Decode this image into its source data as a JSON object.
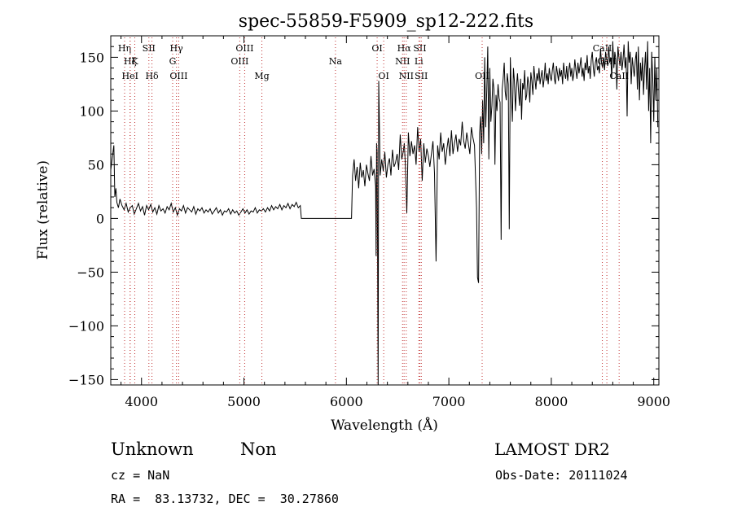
{
  "chart_data": {
    "type": "line",
    "title": "spec-55859-F5909_sp12-222.fits",
    "xlabel": "Wavelength (Å)",
    "ylabel": "Flux (relative)",
    "xlim": [
      3700,
      9050
    ],
    "ylim": [
      -155,
      170
    ],
    "xticks_major": [
      4000,
      5000,
      6000,
      7000,
      8000,
      9000
    ],
    "xtick_labels": [
      "4000",
      "5000",
      "6000",
      "7000",
      "8000",
      "9000"
    ],
    "yticks_major": [
      -150,
      -100,
      -50,
      0,
      50,
      100,
      150
    ],
    "ytick_labels": [
      "−150",
      "−100",
      "−50",
      "0",
      "50",
      "100",
      "150"
    ],
    "grid": false,
    "series": [
      {
        "color": "#000000",
        "x": [
          3700,
          3730,
          3740,
          3750,
          3760,
          3775,
          3790,
          3810,
          3830,
          3850,
          3870,
          3890,
          3910,
          3930,
          3950,
          3970,
          3990,
          4010,
          4030,
          4050,
          4070,
          4090,
          4110,
          4130,
          4150,
          4170,
          4190,
          4210,
          4230,
          4250,
          4270,
          4290,
          4310,
          4330,
          4350,
          4370,
          4390,
          4410,
          4430,
          4450,
          4470,
          4490,
          4510,
          4530,
          4550,
          4570,
          4590,
          4610,
          4630,
          4650,
          4670,
          4690,
          4710,
          4730,
          4750,
          4770,
          4790,
          4810,
          4830,
          4850,
          4870,
          4890,
          4910,
          4930,
          4950,
          4970,
          4990,
          5010,
          5030,
          5050,
          5070,
          5090,
          5110,
          5130,
          5150,
          5170,
          5190,
          5210,
          5230,
          5250,
          5270,
          5290,
          5310,
          5330,
          5350,
          5370,
          5390,
          5410,
          5430,
          5450,
          5470,
          5490,
          5510,
          5530,
          5550,
          5560,
          5800,
          6050,
          6060,
          6075,
          6090,
          6105,
          6120,
          6135,
          6150,
          6165,
          6180,
          6195,
          6210,
          6225,
          6240,
          6255,
          6270,
          6285,
          6290,
          6295,
          6300,
          6310,
          6315,
          6330,
          6345,
          6360,
          6375,
          6390,
          6405,
          6420,
          6435,
          6450,
          6465,
          6480,
          6495,
          6510,
          6525,
          6540,
          6555,
          6565,
          6575,
          6590,
          6605,
          6620,
          6635,
          6650,
          6665,
          6680,
          6695,
          6710,
          6725,
          6740,
          6755,
          6770,
          6785,
          6800,
          6815,
          6830,
          6845,
          6860,
          6875,
          6890,
          6905,
          6920,
          6935,
          6950,
          6965,
          6980,
          6995,
          7010,
          7025,
          7040,
          7055,
          7070,
          7085,
          7100,
          7115,
          7130,
          7145,
          7160,
          7175,
          7190,
          7205,
          7220,
          7235,
          7250,
          7260,
          7270,
          7280,
          7290,
          7300,
          7310,
          7320,
          7330,
          7340,
          7350,
          7360,
          7370,
          7380,
          7390,
          7400,
          7410,
          7420,
          7430,
          7440,
          7450,
          7460,
          7470,
          7480,
          7490,
          7500,
          7510,
          7520,
          7530,
          7540,
          7550,
          7560,
          7570,
          7580,
          7590,
          7600,
          7610,
          7620,
          7630,
          7640,
          7650,
          7660,
          7670,
          7680,
          7690,
          7700,
          7710,
          7720,
          7730,
          7740,
          7750,
          7760,
          7770,
          7780,
          7790,
          7800,
          7810,
          7820,
          7830,
          7840,
          7850,
          7860,
          7870,
          7880,
          7890,
          7900,
          7910,
          7920,
          7930,
          7940,
          7950,
          7960,
          7970,
          7980,
          7990,
          8000,
          8010,
          8020,
          8030,
          8040,
          8050,
          8060,
          8070,
          8080,
          8090,
          8100,
          8110,
          8120,
          8130,
          8140,
          8150,
          8160,
          8170,
          8180,
          8190,
          8200,
          8210,
          8220,
          8230,
          8240,
          8250,
          8260,
          8270,
          8280,
          8290,
          8300,
          8310,
          8320,
          8330,
          8340,
          8350,
          8360,
          8370,
          8380,
          8390,
          8400,
          8410,
          8420,
          8430,
          8440,
          8450,
          8460,
          8470,
          8480,
          8490,
          8500,
          8510,
          8520,
          8530,
          8540,
          8550,
          8560,
          8570,
          8580,
          8590,
          8600,
          8610,
          8620,
          8630,
          8640,
          8650,
          8660,
          8670,
          8680,
          8690,
          8700,
          8710,
          8720,
          8730,
          8740,
          8750,
          8760,
          8770,
          8780,
          8790,
          8800,
          8810,
          8820,
          8830,
          8840,
          8850,
          8860,
          8870,
          8880,
          8890,
          8900,
          8910,
          8920,
          8930,
          8940,
          8950,
          8960,
          8970,
          8980,
          8990,
          9000,
          9010,
          9020,
          9030,
          9040
        ],
        "y": [
          45,
          68,
          20,
          28,
          15,
          10,
          18,
          12,
          8,
          14,
          6,
          10,
          12,
          4,
          9,
          14,
          7,
          11,
          3,
          12,
          8,
          13,
          6,
          10,
          4,
          12,
          7,
          9,
          5,
          11,
          8,
          14,
          6,
          10,
          3,
          9,
          7,
          12,
          5,
          10,
          8,
          6,
          11,
          4,
          9,
          7,
          10,
          5,
          8,
          6,
          9,
          4,
          7,
          10,
          5,
          8,
          3,
          7,
          6,
          9,
          4,
          8,
          5,
          7,
          3,
          6,
          9,
          5,
          8,
          4,
          7,
          6,
          10,
          5,
          8,
          7,
          9,
          6,
          10,
          7,
          12,
          8,
          11,
          9,
          13,
          8,
          12,
          10,
          14,
          9,
          13,
          11,
          15,
          10,
          12,
          0,
          0,
          0,
          40,
          55,
          35,
          48,
          28,
          52,
          38,
          45,
          30,
          50,
          42,
          35,
          58,
          40,
          46,
          30,
          -35,
          70,
          62,
          -155,
          128,
          40,
          55,
          44,
          62,
          38,
          50,
          56,
          40,
          64,
          48,
          52,
          60,
          45,
          78,
          55,
          62,
          70,
          50,
          5,
          80,
          58,
          72,
          60,
          68,
          50,
          85,
          62,
          74,
          35,
          70,
          52,
          65,
          58,
          48,
          60,
          72,
          42,
          -40,
          68,
          55,
          80,
          62,
          70,
          50,
          64,
          75,
          58,
          82,
          60,
          70,
          78,
          62,
          74,
          68,
          90,
          72,
          65,
          80,
          70,
          60,
          85,
          75,
          68,
          40,
          10,
          -55,
          -60,
          80,
          95,
          60,
          110,
          70,
          150,
          85,
          120,
          160,
          55,
          140,
          90,
          105,
          130,
          120,
          50,
          115,
          100,
          125,
          112,
          108,
          -20,
          120,
          130,
          145,
          118,
          110,
          135,
          125,
          -10,
          150,
          115,
          90,
          140,
          128,
          100,
          122,
          135,
          118,
          105,
          130,
          92,
          126,
          120,
          138,
          110,
          115,
          132,
          125,
          108,
          136,
          128,
          115,
          142,
          130,
          120,
          135,
          128,
          140,
          125,
          132,
          138,
          122,
          130,
          145,
          128,
          135,
          125,
          140,
          132,
          128,
          138,
          145,
          130,
          125,
          142,
          135,
          128,
          140,
          132,
          138,
          125,
          145,
          135,
          130,
          142,
          128,
          138,
          145,
          132,
          140,
          128,
          135,
          148,
          138,
          130,
          145,
          135,
          142,
          150,
          132,
          140,
          128,
          145,
          138,
          152,
          135,
          142,
          130,
          148,
          155,
          140,
          132,
          145,
          150,
          138,
          142,
          135,
          158,
          145,
          140,
          150,
          138,
          155,
          148,
          142,
          160,
          145,
          150,
          130,
          165,
          140,
          155,
          148,
          120,
          160,
          150,
          142,
          155,
          138,
          148,
          162,
          140,
          150,
          95,
          165,
          145,
          155,
          125,
          150,
          140,
          132,
          148,
          155,
          120,
          160,
          110,
          145,
          128,
          150,
          115,
          140,
          155,
          120,
          165,
          100,
          140,
          70,
          155,
          130,
          90,
          150,
          110,
          140,
          85
        ]
      }
    ],
    "line_markers": [
      {
        "wavelength": 3835,
        "label": "Hη",
        "row": 1
      },
      {
        "wavelength": 3889,
        "label": "Hζ",
        "row": 2
      },
      {
        "wavelength": 3889,
        "label": "HeI",
        "row": 3
      },
      {
        "wavelength": 3934,
        "label": "K",
        "row": 2
      },
      {
        "wavelength": 4072,
        "label": "SII",
        "row": 1
      },
      {
        "wavelength": 4102,
        "label": "Hδ",
        "row": 3
      },
      {
        "wavelength": 4304,
        "label": "G",
        "row": 2
      },
      {
        "wavelength": 4341,
        "label": "Hγ",
        "row": 1
      },
      {
        "wavelength": 4363,
        "label": "OIII",
        "row": 3
      },
      {
        "wavelength": 4959,
        "label": "OIII",
        "row": 2
      },
      {
        "wavelength": 5007,
        "label": "OIII",
        "row": 1
      },
      {
        "wavelength": 5175,
        "label": "Mg",
        "row": 3
      },
      {
        "wavelength": 5893,
        "label": "Na",
        "row": 2
      },
      {
        "wavelength": 6300,
        "label": "OI",
        "row": 1
      },
      {
        "wavelength": 6364,
        "label": "OI",
        "row": 3
      },
      {
        "wavelength": 6548,
        "label": "NII",
        "row": 2
      },
      {
        "wavelength": 6563,
        "label": "Hα",
        "row": 1
      },
      {
        "wavelength": 6584,
        "label": "NII",
        "row": 3
      },
      {
        "wavelength": 6707,
        "label": "Li",
        "row": 2
      },
      {
        "wavelength": 6717,
        "label": "SII",
        "row": 1
      },
      {
        "wavelength": 6731,
        "label": "SII",
        "row": 3
      },
      {
        "wavelength": 7325,
        "label": "OII",
        "row": 3
      },
      {
        "wavelength": 8498,
        "label": "CaII",
        "row": 1
      },
      {
        "wavelength": 8542,
        "label": "CaII",
        "row": 2
      },
      {
        "wavelength": 8662,
        "label": "CaII",
        "row": 3
      }
    ]
  },
  "footer": {
    "class_label": "Unknown",
    "subclass_label": "Non",
    "survey": "LAMOST DR2",
    "cz_text": "cz = NaN",
    "obs_date": "Obs-Date: 20111024",
    "coords": "RA =  83.13732, DEC =  30.27860"
  }
}
